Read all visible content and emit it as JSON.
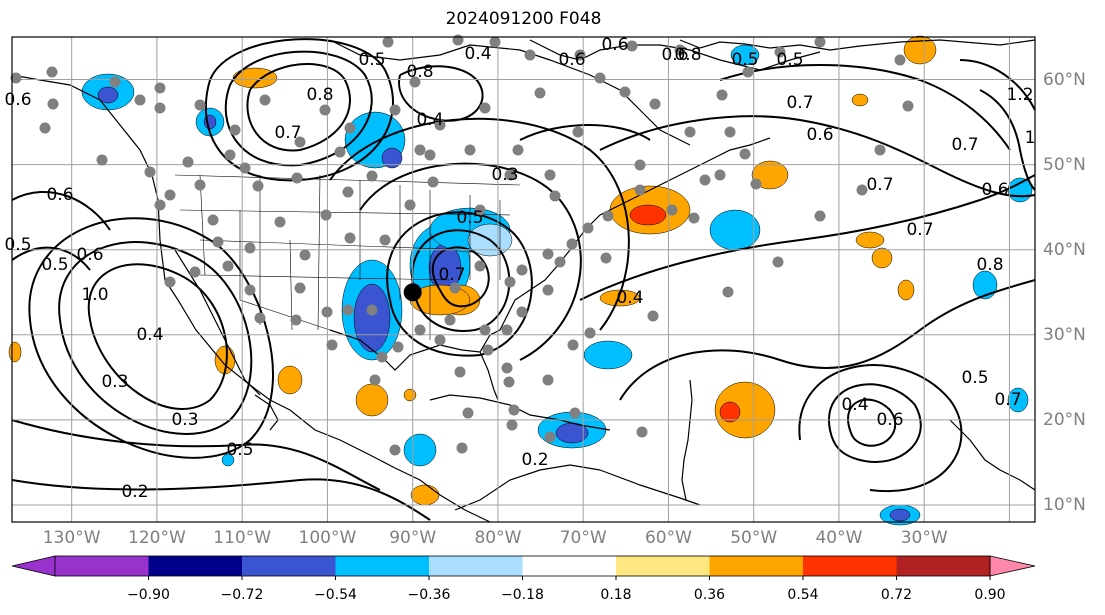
{
  "map": {
    "title": "2024091200 F048",
    "longitude_labels": [
      "130°W",
      "120°W",
      "110°W",
      "100°W",
      "90°W",
      "80°W",
      "70°W",
      "60°W",
      "50°W",
      "40°W",
      "30°W"
    ],
    "latitude_labels": [
      "60°N",
      "50°N",
      "40°N",
      "30°N",
      "20°N",
      "10°N"
    ],
    "lon_range": [
      -137,
      -17
    ],
    "lat_range": [
      8,
      65
    ],
    "contour_labels": [
      "0.6",
      "0.5",
      "0.4",
      "0.8",
      "0.7",
      "0.6",
      "0.6",
      "0.8",
      "0.5",
      "0.6",
      "0.4",
      "0.8",
      "0.7",
      "0.5",
      "0.6",
      "1.2",
      "0.7",
      "1",
      "0.3",
      "0.6",
      "0.7",
      "0.6",
      "0.6",
      "0.5",
      "0.7",
      "0.5",
      "0.8",
      "1.0",
      "0.4",
      "0.4",
      "0.5",
      "0.7",
      "0.3",
      "0.3",
      "0.5",
      "0.4",
      "0.6",
      "0.2",
      "0.2",
      "0.7",
      "0.5"
    ],
    "colorbar": {
      "tick_labels": [
        "−0.90",
        "−0.72",
        "−0.54",
        "−0.36",
        "−0.18",
        "0.18",
        "0.36",
        "0.54",
        "0.72",
        "0.90"
      ],
      "colors": [
        "#9932cc",
        "#00008b",
        "#3a55cf",
        "#00bfff",
        "#aadeff",
        "#ffffff",
        "#ffe680",
        "#ffa500",
        "#ff3300",
        "#b22222",
        "#ff88aa"
      ]
    },
    "markers": {
      "station_color": "#808080",
      "center_color": "#000000"
    }
  }
}
